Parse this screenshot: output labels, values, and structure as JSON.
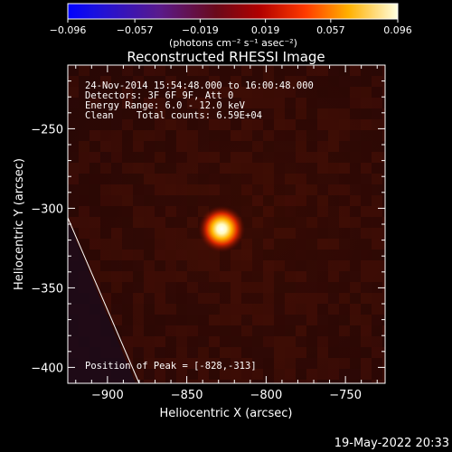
{
  "chart_data": {
    "type": "heatmap",
    "title": "Reconstructed RHESSI Image",
    "xlabel": "Heliocentric X (arcsec)",
    "ylabel": "Heliocentric Y (arcsec)",
    "xlim": [
      -925,
      -725
    ],
    "ylim": [
      -410,
      -210
    ],
    "x_ticks": [
      -900,
      -850,
      -800,
      -750
    ],
    "y_ticks": [
      -250,
      -300,
      -350,
      -400
    ],
    "x_tick_labels": [
      "−900",
      "−850",
      "−800",
      "−750"
    ],
    "y_tick_labels": [
      "−250",
      "−300",
      "−350",
      "−400"
    ],
    "colorbar": {
      "range": [
        -0.096,
        0.096
      ],
      "ticks": [
        -0.096,
        -0.057,
        -0.019,
        0.019,
        0.057,
        0.096
      ],
      "tick_labels": [
        "−0.096",
        "−0.057",
        "−0.019",
        "0.019",
        "0.057",
        "0.096"
      ],
      "unit_label": "(photons cm⁻² s⁻¹ asec⁻²)",
      "colormap": "red-temperature"
    },
    "annotations": [
      "24-Nov-2014 15:54:48.000 to 16:00:48.000",
      "Detectors: 3F 6F 9F, Att 0",
      "Energy Range: 6.0 - 12.0 keV",
      "Clean    Total counts: 6.59E+04"
    ],
    "peak_label": "Position of Peak = [-828,-313]",
    "peak": [
      -828,
      -313
    ],
    "limb_line": [
      [
        -925,
        -306
      ],
      [
        -880,
        -410
      ]
    ],
    "timestamp": "19-May-2022 20:33"
  }
}
